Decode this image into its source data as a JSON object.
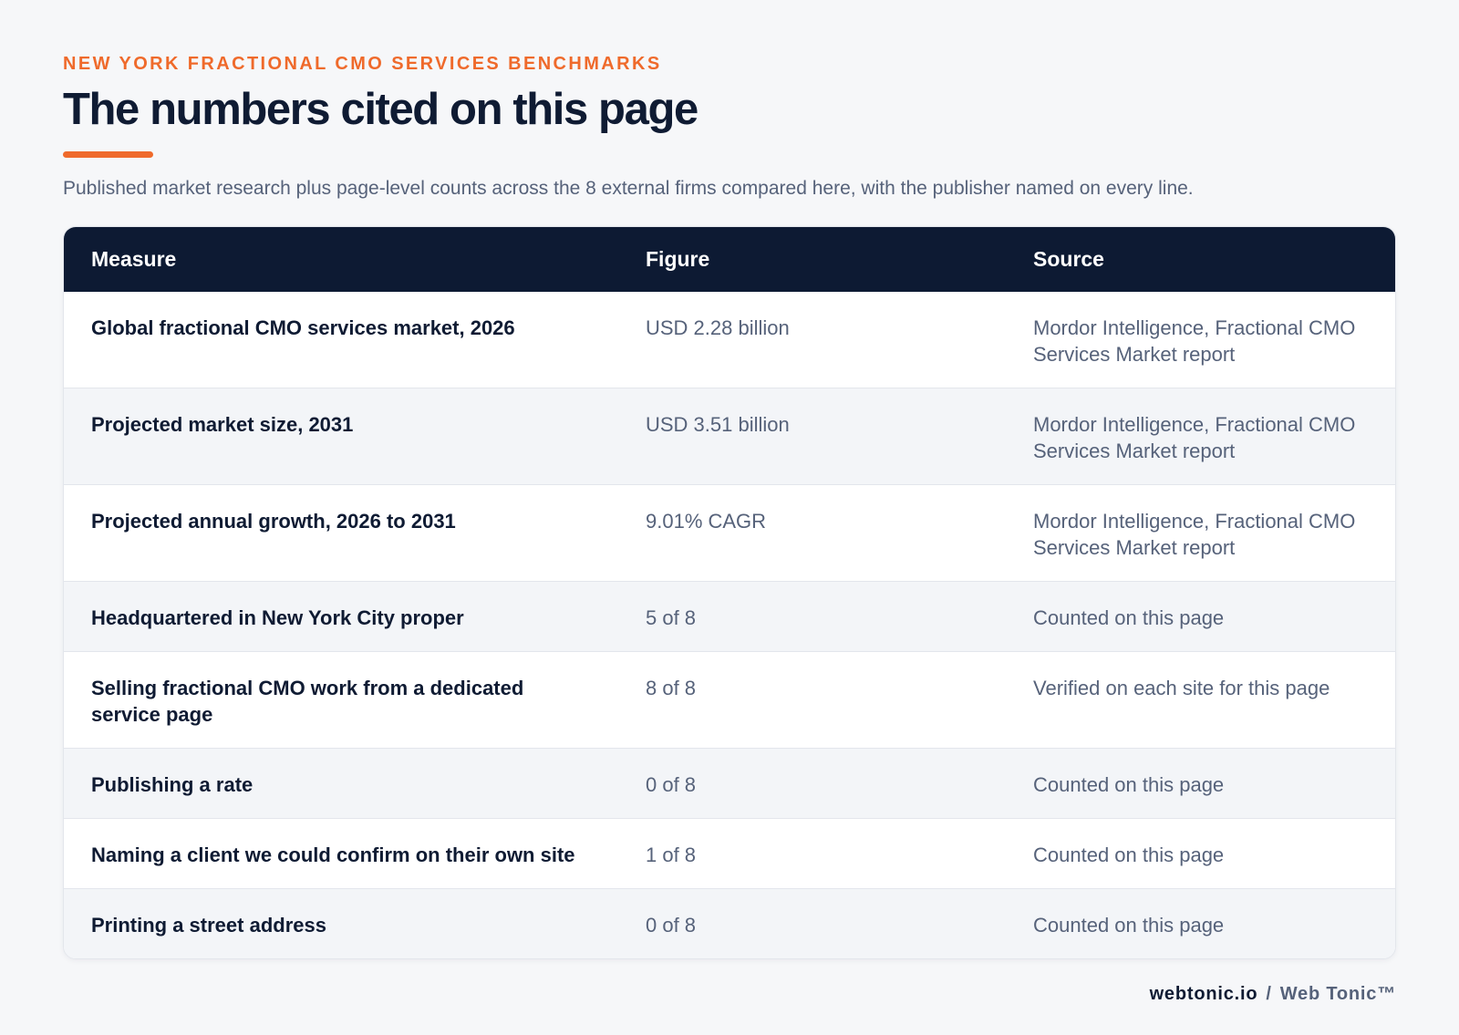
{
  "header": {
    "eyebrow": "NEW YORK FRACTIONAL CMO SERVICES BENCHMARKS",
    "title": "The numbers cited on this page",
    "subtitle": "Published market research plus page-level counts across the 8 external firms compared here, with the publisher named on every line."
  },
  "table": {
    "columns": [
      "Measure",
      "Figure",
      "Source"
    ],
    "rows": [
      {
        "measure": "Global fractional CMO services market, 2026",
        "figure": "USD 2.28 billion",
        "source": "Mordor Intelligence, Fractional CMO Services Market report"
      },
      {
        "measure": "Projected market size, 2031",
        "figure": "USD 3.51 billion",
        "source": "Mordor Intelligence, Fractional CMO Services Market report"
      },
      {
        "measure": "Projected annual growth, 2026 to 2031",
        "figure": "9.01% CAGR",
        "source": "Mordor Intelligence, Fractional CMO Services Market report"
      },
      {
        "measure": "Headquartered in New York City proper",
        "figure": "5 of 8",
        "source": "Counted on this page"
      },
      {
        "measure": "Selling fractional CMO work from a dedicated service page",
        "figure": "8 of 8",
        "source": "Verified on each site for this page"
      },
      {
        "measure": "Publishing a rate",
        "figure": "0 of 8",
        "source": "Counted on this page"
      },
      {
        "measure": "Naming a client we could confirm on their own site",
        "figure": "1 of 8",
        "source": "Counted on this page"
      },
      {
        "measure": "Printing a street address",
        "figure": "0 of 8",
        "source": "Counted on this page"
      }
    ]
  },
  "footer": {
    "domain": "webtonic.io",
    "separator": "/",
    "brand": "Web Tonic™"
  },
  "colors": {
    "accent": "#ef6a2b",
    "navy": "#0d1a33",
    "muted": "#56627a",
    "background": "#f6f7f9"
  }
}
